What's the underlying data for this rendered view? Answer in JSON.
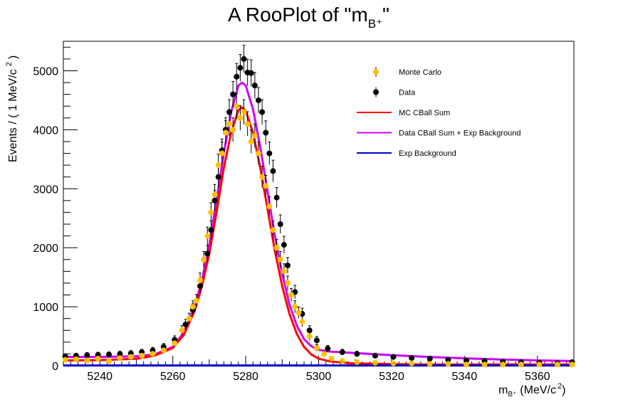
{
  "chart_data": {
    "type": "scatter",
    "title_main": "A RooPlot of \"m",
    "title_sub": "B⁺",
    "title_end": "\"",
    "ylabel_main": "Events / ( 1 MeV/c",
    "ylabel_sup": "2",
    "ylabel_end": ")",
    "xlabel_main": "m",
    "xlabel_sub": "B⁺",
    "xlabel_units": "(MeV/c",
    "xlabel_sup": "2",
    "xlabel_end": ")",
    "xlim": [
      5230,
      5370
    ],
    "ylim": [
      0,
      5500
    ],
    "x_ticks": [
      5240,
      5260,
      5280,
      5300,
      5320,
      5340,
      5360
    ],
    "y_ticks": [
      0,
      1000,
      2000,
      3000,
      4000,
      5000
    ],
    "legend_position": "top-right",
    "legend": [
      {
        "label": "Monte Carlo",
        "kind": "marker",
        "color": "#ffc000"
      },
      {
        "label": "Data",
        "kind": "marker",
        "color": "#000000"
      },
      {
        "label": "MC CBall Sum",
        "kind": "line",
        "color": "#ff0000"
      },
      {
        "label": "Data CBall Sum + Exp Background",
        "kind": "line",
        "color": "#cc00ff"
      },
      {
        "label": "Exp Background",
        "kind": "line",
        "color": "#0000cc"
      }
    ],
    "series": [
      {
        "name": "Data",
        "kind": "points",
        "color": "#000000",
        "x": [
          5230.5,
          5233.5,
          5236.5,
          5239.5,
          5242.5,
          5245.5,
          5248.5,
          5251.5,
          5254.5,
          5257.5,
          5260.5,
          5263.5,
          5265.5,
          5267.5,
          5269.5,
          5270.5,
          5271.5,
          5272.5,
          5273.5,
          5274.5,
          5275.5,
          5276.5,
          5277.5,
          5278.5,
          5279.5,
          5280.5,
          5281.5,
          5282.5,
          5283.5,
          5284.5,
          5285.5,
          5286.5,
          5287.5,
          5288.5,
          5289.5,
          5290.5,
          5291.5,
          5293.5,
          5295.5,
          5297.5,
          5299.5,
          5302.5,
          5306.5,
          5310.5,
          5315.5,
          5320.5,
          5325.5,
          5330.5,
          5335.5,
          5340.5,
          5345.5,
          5350.5,
          5355.5,
          5360.5,
          5365.5,
          5369.5
        ],
        "y": [
          160,
          170,
          180,
          185,
          190,
          200,
          210,
          230,
          260,
          320,
          440,
          700,
          950,
          1350,
          1900,
          2300,
          2800,
          3200,
          3650,
          4000,
          4300,
          4600,
          4900,
          5050,
          5200,
          4970,
          4960,
          4750,
          4500,
          4300,
          3950,
          3600,
          3300,
          2850,
          2400,
          2050,
          1700,
          1250,
          880,
          600,
          430,
          290,
          230,
          200,
          170,
          150,
          130,
          120,
          100,
          90,
          80,
          70,
          60,
          50,
          40,
          60
        ]
      },
      {
        "name": "Monte Carlo",
        "kind": "points",
        "color": "#ffc000",
        "x": [
          5230.5,
          5233.5,
          5236.5,
          5239.5,
          5242.5,
          5245.5,
          5248.5,
          5251.5,
          5254.5,
          5257.5,
          5260.5,
          5262.5,
          5264.5,
          5265.5,
          5266.5,
          5267.5,
          5268.5,
          5269.5,
          5270.5,
          5271.5,
          5272.5,
          5273.5,
          5274.5,
          5275.5,
          5276.5,
          5277.5,
          5278.5,
          5279.5,
          5280.5,
          5281.5,
          5282.5,
          5283.5,
          5284.5,
          5285.5,
          5286.5,
          5287.5,
          5288.5,
          5289.5,
          5290.5,
          5291.5,
          5292.5,
          5293.5,
          5294.5,
          5295.5,
          5297.5,
          5299.5,
          5301.5,
          5303.5,
          5306.5,
          5310.5,
          5315.5,
          5320.5,
          5325.5,
          5330.5,
          5335.5,
          5340.5,
          5345.5,
          5350.5,
          5355.5,
          5360.5,
          5365.5,
          5369.5
        ],
        "y": [
          100,
          110,
          90,
          120,
          80,
          130,
          150,
          170,
          200,
          260,
          380,
          600,
          800,
          1000,
          1100,
          1450,
          1800,
          2200,
          2600,
          2900,
          3400,
          3600,
          3950,
          4100,
          4000,
          4400,
          4200,
          4300,
          4100,
          3800,
          3900,
          3600,
          3200,
          3050,
          2700,
          2300,
          2000,
          1800,
          1600,
          1400,
          1200,
          1000,
          900,
          750,
          500,
          300,
          200,
          120,
          80,
          60,
          50,
          40,
          40,
          30,
          30,
          20,
          20,
          20,
          20,
          20,
          20,
          20
        ]
      },
      {
        "name": "Data CBall Sum + Exp Background",
        "kind": "curve",
        "color": "#cc00ff",
        "x": [
          5230,
          5240,
          5250,
          5255,
          5260,
          5263,
          5266,
          5268,
          5270,
          5272,
          5274,
          5276,
          5278,
          5279,
          5280,
          5282,
          5284,
          5286,
          5288,
          5290,
          5292,
          5294,
          5296,
          5298,
          5300,
          5303,
          5306,
          5310,
          5320,
          5330,
          5340,
          5350,
          5360,
          5370
        ],
        "y": [
          150,
          150,
          160,
          190,
          320,
          560,
          1000,
          1450,
          2050,
          2800,
          3600,
          4300,
          4750,
          4800,
          4750,
          4350,
          3700,
          2950,
          2200,
          1560,
          1040,
          680,
          450,
          330,
          270,
          240,
          230,
          215,
          180,
          150,
          125,
          105,
          90,
          80
        ]
      },
      {
        "name": "MC CBall Sum",
        "kind": "curve",
        "color": "#ff0000",
        "x": [
          5230,
          5240,
          5250,
          5255,
          5260,
          5263,
          5266,
          5268,
          5270,
          5272,
          5274,
          5276,
          5278,
          5279,
          5280,
          5282,
          5284,
          5286,
          5288,
          5290,
          5292,
          5294,
          5296,
          5298,
          5300,
          5303,
          5306,
          5310,
          5320,
          5330,
          5340,
          5350,
          5360,
          5370
        ],
        "y": [
          90,
          95,
          120,
          170,
          300,
          520,
          930,
          1350,
          1900,
          2600,
          3350,
          3950,
          4330,
          4380,
          4320,
          3950,
          3350,
          2650,
          1950,
          1350,
          880,
          540,
          320,
          190,
          120,
          75,
          55,
          40,
          28,
          22,
          20,
          20,
          20,
          20
        ]
      },
      {
        "name": "Exp Background",
        "kind": "curve",
        "color": "#0000cc",
        "x": [
          5230,
          5370
        ],
        "y": [
          5,
          5
        ]
      }
    ]
  }
}
